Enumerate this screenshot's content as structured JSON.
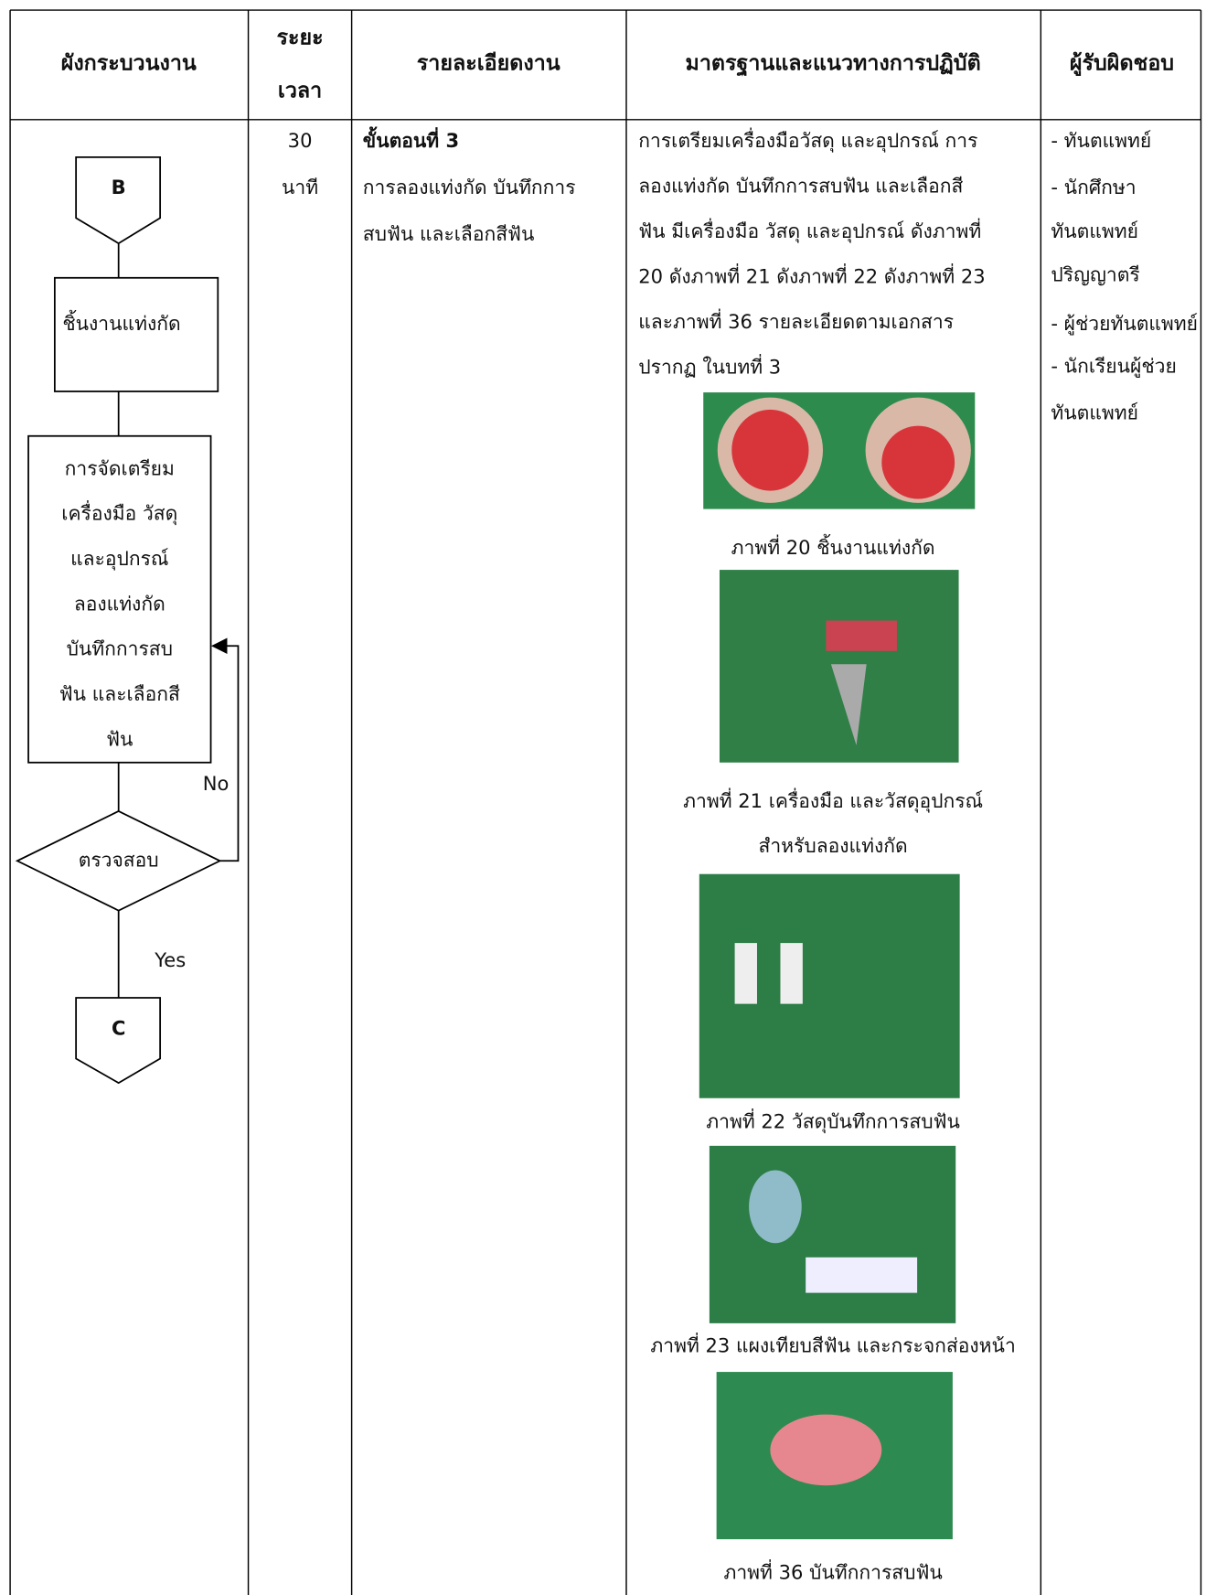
{
  "header": {
    "flowchart": "ผังกระบวนงาน",
    "duration": [
      "ระยะ",
      "เวลา"
    ],
    "details": "รายละเอียดงาน",
    "standards": "มาตรฐานและแนวทางการปฏิบัติ",
    "responsible": "ผู้รับผิดชอบ"
  },
  "flowchart": {
    "connector_in": "B",
    "box": "ชิ้นงานแท่งกัด",
    "process": [
      "การจัดเตรียม",
      "เครื่องมือ วัสดุ",
      "และอุปกรณ์",
      "ลองแท่งกัด",
      "บันทึกการสบ",
      "ฟัน และเลือกสี",
      "ฟัน"
    ],
    "decision": "ตรวจสอบ",
    "no": "No",
    "yes": "Yes",
    "connector_out": "C"
  },
  "duration": [
    "30",
    "นาที"
  ],
  "details": {
    "step": "ขั้นตอนที่ 3",
    "lines": [
      "การลองแท่งกัด บันทึกการ",
      "สบฟัน และเลือกสีฟัน"
    ]
  },
  "standards": {
    "lines": [
      "การเตรียมเครื่องมือวัสดุ และอุปกรณ์ การ",
      "ลองแท่งกัด บันทึกการสบฟัน และเลือกสี",
      "ฟัน มีเครื่องมือ วัสดุ และอุปกรณ์ ดังภาพที่",
      "20 ดังภาพที่ 21 ดังภาพที่ 22 ดังภาพที่ 23",
      "และภาพที่ 36 รายละเอียดตามเอกสาร",
      "ปรากฏ ในบทที่ 3"
    ],
    "figures": [
      {
        "caption": [
          "ภาพที่ 20 ชิ้นงานแท่งกัด"
        ]
      },
      {
        "caption": [
          "ภาพที่ 21 เครื่องมือ และวัสดุอุปกรณ์",
          "สำหรับลองแท่งกัด"
        ]
      },
      {
        "caption": [
          "ภาพที่ 22  วัสดุบันทึกการสบฟัน"
        ]
      },
      {
        "caption": [
          "ภาพที่ 23 แผงเทียบสีฟัน และกระจกส่องหน้า"
        ]
      },
      {
        "caption": [
          "ภาพที่ 36 บันทึกการสบฟัน"
        ]
      }
    ]
  },
  "responsible": [
    "- ทันตแพทย์",
    "- นักศึกษา",
    "ทันตแพทย์",
    "ปริญญาตรี",
    "- ผู้ช่วยทันตแพทย์",
    "- นักเรียนผู้ช่วย",
    "ทันตแพทย์"
  ]
}
